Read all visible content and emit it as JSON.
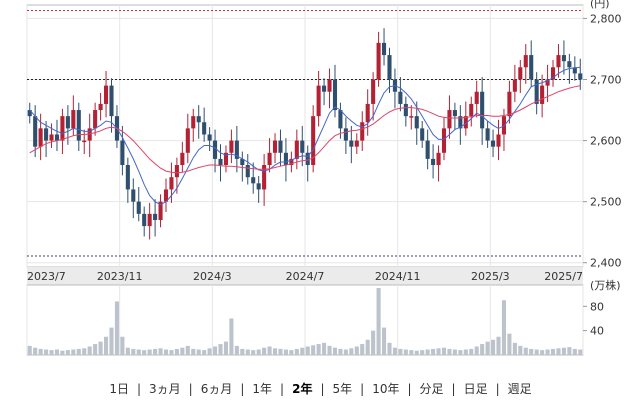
{
  "chart_data": {
    "type": "candlestick",
    "price_axis": {
      "ticks": [
        2400,
        2500,
        2600,
        2700,
        2800
      ],
      "labels": [
        "2,400",
        "2,500",
        "2,600",
        "2,700",
        "2,800"
      ],
      "ylim": [
        2393,
        2822
      ]
    },
    "reference_lines": {
      "high": 2813,
      "mid": 2700,
      "low": 2411
    },
    "date_labels": [
      "2023/7",
      "2023/11",
      "2024/3",
      "2024/7",
      "2024/11",
      "2025/3",
      "2025/7"
    ],
    "volume_axis": {
      "unit_label": "(万株)",
      "ticks": [
        40,
        80
      ],
      "ylim": [
        0,
        115
      ]
    },
    "weekly_close": [
      2640,
      2590,
      2620,
      2600,
      2610,
      2600,
      2640,
      2620,
      2650,
      2600,
      2600,
      2620,
      2650,
      2660,
      2690,
      2640,
      2600,
      2560,
      2520,
      2500,
      2480,
      2460,
      2480,
      2470,
      2500,
      2520,
      2540,
      2560,
      2580,
      2620,
      2640,
      2630,
      2610,
      2600,
      2570,
      2560,
      2580,
      2600,
      2570,
      2560,
      2540,
      2530,
      2520,
      2560,
      2580,
      2600,
      2580,
      2560,
      2570,
      2600,
      2580,
      2560,
      2640,
      2690,
      2680,
      2700,
      2650,
      2620,
      2600,
      2590,
      2600,
      2630,
      2660,
      2700,
      2760,
      2740,
      2700,
      2680,
      2660,
      2640,
      2640,
      2620,
      2600,
      2570,
      2560,
      2580,
      2620,
      2650,
      2640,
      2620,
      2640,
      2660,
      2680,
      2620,
      2600,
      2590,
      2610,
      2640,
      2680,
      2700,
      2720,
      2740,
      2700,
      2660,
      2690,
      2700,
      2720,
      2740,
      2730,
      2720,
      2710,
      2700
    ],
    "ma_short": [
      2650,
      2640,
      2630,
      2625,
      2620,
      2615,
      2612,
      2615,
      2620,
      2618,
      2615,
      2615,
      2620,
      2625,
      2632,
      2630,
      2620,
      2605,
      2588,
      2570,
      2550,
      2528,
      2510,
      2500,
      2495,
      2500,
      2510,
      2522,
      2538,
      2555,
      2572,
      2585,
      2592,
      2592,
      2588,
      2580,
      2576,
      2578,
      2575,
      2570,
      2565,
      2558,
      2552,
      2550,
      2553,
      2560,
      2565,
      2565,
      2568,
      2572,
      2575,
      2574,
      2585,
      2605,
      2625,
      2645,
      2655,
      2650,
      2640,
      2632,
      2625,
      2622,
      2628,
      2640,
      2660,
      2678,
      2688,
      2690,
      2686,
      2678,
      2668,
      2655,
      2640,
      2625,
      2610,
      2602,
      2602,
      2610,
      2618,
      2622,
      2628,
      2636,
      2645,
      2640,
      2632,
      2625,
      2620,
      2624,
      2635,
      2648,
      2660,
      2675,
      2688,
      2692,
      2695,
      2698,
      2703,
      2710,
      2715,
      2718,
      2719,
      2720
    ],
    "ma_long": [
      2580,
      2585,
      2590,
      2595,
      2598,
      2600,
      2602,
      2605,
      2608,
      2610,
      2610,
      2611,
      2613,
      2616,
      2620,
      2622,
      2620,
      2615,
      2608,
      2600,
      2590,
      2580,
      2570,
      2562,
      2555,
      2550,
      2548,
      2547,
      2548,
      2550,
      2553,
      2556,
      2558,
      2560,
      2560,
      2559,
      2558,
      2558,
      2557,
      2556,
      2555,
      2554,
      2553,
      2553,
      2554,
      2556,
      2558,
      2560,
      2562,
      2565,
      2567,
      2568,
      2572,
      2580,
      2590,
      2600,
      2608,
      2612,
      2614,
      2616,
      2617,
      2619,
      2622,
      2627,
      2634,
      2641,
      2647,
      2651,
      2653,
      2654,
      2654,
      2653,
      2651,
      2648,
      2644,
      2640,
      2638,
      2637,
      2637,
      2637,
      2638,
      2639,
      2641,
      2641,
      2641,
      2640,
      2640,
      2641,
      2643,
      2646,
      2650,
      2655,
      2660,
      2664,
      2668,
      2672,
      2676,
      2680,
      2683,
      2686,
      2688,
      2690
    ],
    "volume": [
      15,
      12,
      10,
      9,
      8,
      9,
      7,
      8,
      9,
      10,
      11,
      14,
      18,
      22,
      30,
      45,
      88,
      30,
      12,
      10,
      9,
      8,
      9,
      10,
      11,
      9,
      8,
      10,
      12,
      15,
      10,
      9,
      8,
      11,
      14,
      18,
      22,
      60,
      15,
      10,
      9,
      8,
      9,
      12,
      14,
      11,
      10,
      9,
      8,
      10,
      12,
      14,
      16,
      18,
      20,
      15,
      12,
      10,
      9,
      11,
      14,
      18,
      25,
      40,
      110,
      45,
      20,
      12,
      10,
      9,
      8,
      7,
      8,
      9,
      10,
      11,
      12,
      10,
      9,
      8,
      9,
      10,
      14,
      18,
      22,
      25,
      30,
      90,
      35,
      20,
      15,
      12,
      10,
      9,
      8,
      9,
      10,
      11,
      12,
      13,
      10,
      9
    ]
  },
  "periods": {
    "items": [
      "1日",
      "3ヵ月",
      "6ヵ月",
      "1年",
      "2年",
      "5年",
      "10年",
      "分足",
      "日足",
      "週足"
    ],
    "active_index": 4
  },
  "colors": {
    "up": "#b22234",
    "down": "#2f4f6f",
    "ma_short": "#4466cc",
    "ma_long": "#dd4466",
    "volume": "#bcc3cc"
  }
}
